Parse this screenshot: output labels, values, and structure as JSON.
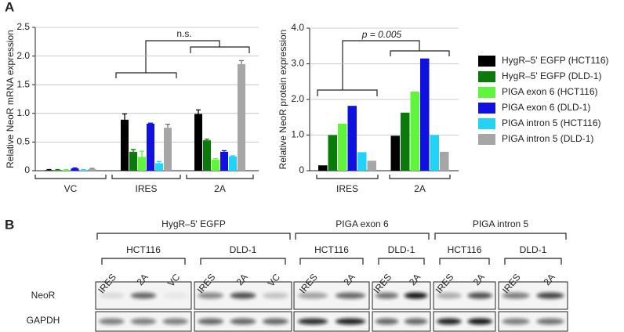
{
  "panel_labels": [
    "A",
    "B"
  ],
  "chart_data": [
    {
      "type": "bar",
      "ylabel": "Relative NeoR mRNA expression",
      "categories": [
        "VC",
        "IRES",
        "2A"
      ],
      "ylim": [
        0,
        2.5
      ],
      "yticks": [
        0,
        0.5,
        {
          "value": 1,
          "label": "1.0"
        },
        1.5,
        {
          "value": 2,
          "label": "2.0"
        },
        2.5
      ],
      "annotations": [
        "n.s."
      ],
      "series": [
        {
          "color": "#000000",
          "values": [
            0.01,
            0.89,
            0.99
          ],
          "errors": [
            0.01,
            0.1,
            0.07
          ]
        },
        {
          "color": "#0a7a0a",
          "values": [
            0.01,
            0.33,
            0.53
          ],
          "errors": [
            0.01,
            0.04,
            0.02
          ]
        },
        {
          "color": "#5ef53a",
          "values": [
            0.01,
            0.24,
            0.19
          ],
          "errors": [
            0.01,
            0.1,
            0.02
          ]
        },
        {
          "color": "#1010e0",
          "values": [
            0.04,
            0.82,
            0.33
          ],
          "errors": [
            0.01,
            0.01,
            0.02
          ]
        },
        {
          "color": "#22d3f5",
          "values": [
            0.01,
            0.13,
            0.25
          ],
          "errors": [
            0.01,
            0.03,
            0.01
          ]
        },
        {
          "color": "#a6a6a6",
          "values": [
            0.03,
            0.75,
            1.86
          ],
          "errors": [
            0.01,
            0.06,
            0.06
          ]
        }
      ]
    },
    {
      "type": "bar",
      "ylabel": "Relative NeoR protein expression",
      "categories": [
        "IRES",
        "2A"
      ],
      "ylim": [
        0,
        4
      ],
      "yticks": [
        0,
        {
          "value": 1,
          "label": "1.0"
        },
        {
          "value": 2,
          "label": "2.0"
        },
        {
          "value": 3,
          "label": "3.0"
        },
        {
          "value": 4,
          "label": "4.0"
        }
      ],
      "annotations": [
        "p = 0.005"
      ],
      "series": [
        {
          "name": "HygR–5' EGFP (HCT116)",
          "color": "#000000",
          "values": [
            0.15,
            0.98
          ]
        },
        {
          "name": "HygR–5' EGFP (DLD-1)",
          "color": "#0a7a0a",
          "values": [
            1.0,
            1.63
          ]
        },
        {
          "name": "PIGA exon 6 (HCT116)",
          "color": "#5ef53a",
          "values": [
            1.32,
            2.22
          ]
        },
        {
          "name": "PIGA exon 6 (DLD-1)",
          "color": "#1010e0",
          "values": [
            1.82,
            3.15
          ]
        },
        {
          "name": "PIGA intron 5 (HCT116)",
          "color": "#22d3f5",
          "values": [
            0.52,
            1.0
          ]
        },
        {
          "name": "PIGA intron 5 (DLD-1)",
          "color": "#a6a6a6",
          "values": [
            0.28,
            0.53
          ]
        }
      ]
    }
  ],
  "blot": {
    "groups": [
      {
        "label": "HygR–5' EGFP",
        "cell_lines": [
          {
            "label": "HCT116",
            "lanes": [
              "IRES",
              "2A",
              "VC"
            ]
          },
          {
            "label": "DLD-1",
            "lanes": [
              "IRES",
              "2A",
              "VC"
            ]
          }
        ]
      },
      {
        "label": "PIGA exon 6",
        "cell_lines": [
          {
            "label": "HCT116",
            "lanes": [
              "IRES",
              "2A"
            ]
          },
          {
            "label": "DLD-1",
            "lanes": [
              "IRES",
              "2A"
            ]
          }
        ]
      },
      {
        "label": "PIGA intron 5",
        "cell_lines": [
          {
            "label": "HCT116",
            "lanes": [
              "IRES",
              "2A"
            ]
          },
          {
            "label": "DLD-1",
            "lanes": [
              "IRES",
              "2A"
            ]
          }
        ]
      }
    ],
    "rows": [
      "NeoR",
      "GAPDH"
    ]
  }
}
